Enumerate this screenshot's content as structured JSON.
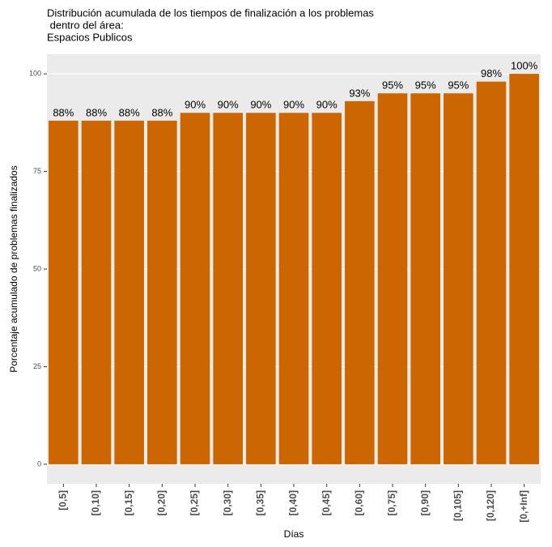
{
  "chart_data": {
    "type": "bar",
    "title": [
      "Distribución acumulada de los tiempos de finalización a los problemas",
      " dentro del área:",
      "Espacios Publicos"
    ],
    "x_label": "Días",
    "y_label": "Porcentaje acumulado de problemas finalizados",
    "categories": [
      "[0,5]",
      "[0,10]",
      "[0,15]",
      "[0,20]",
      "[0,25]",
      "[0,30]",
      "[0,35]",
      "[0,40]",
      "[0,45]",
      "[0,60]",
      "[0,75]",
      "[0,90]",
      "[0,105]",
      "[0,120]",
      "[0,+Inf]"
    ],
    "values": [
      88,
      88,
      88,
      88,
      90,
      90,
      90,
      90,
      90,
      93,
      95,
      95,
      95,
      98,
      100
    ],
    "value_labels": [
      "88%",
      "88%",
      "88%",
      "88%",
      "90%",
      "90%",
      "90%",
      "90%",
      "90%",
      "93%",
      "95%",
      "95%",
      "95%",
      "98%",
      "100%"
    ],
    "color": "#cc6600",
    "ylim": [
      -5,
      105
    ],
    "yticks": [
      0,
      25,
      50,
      75,
      100
    ],
    "grid": true
  }
}
